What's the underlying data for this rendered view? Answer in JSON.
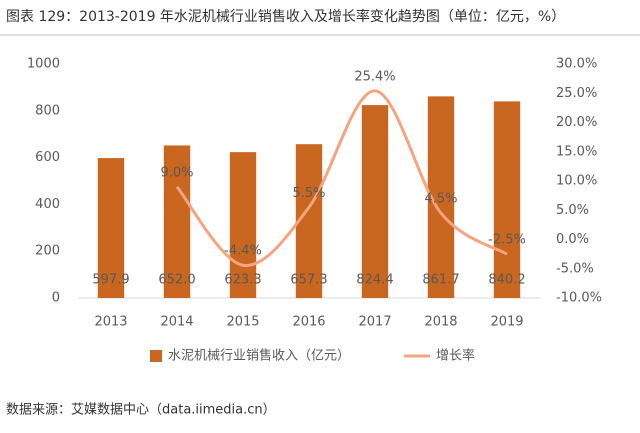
{
  "chart_data": {
    "type": "combo",
    "title": "图表 129：2013-2019 年水泥机械行业销售收入及增长率变化趋势图（单位：亿元，%）",
    "source": "数据来源：艾媒数据中心（data.iimedia.cn）",
    "categories": [
      "2013",
      "2014",
      "2015",
      "2016",
      "2017",
      "2018",
      "2019"
    ],
    "series": [
      {
        "name": "水泥机械行业销售收入（亿元）",
        "type": "bar",
        "color": "#c9661f",
        "values": [
          597.9,
          652.0,
          623.3,
          657.3,
          824.4,
          861.7,
          840.2
        ],
        "value_labels": [
          "597.9",
          "652.0",
          "623.3",
          "657.3",
          "824.4",
          "861.7",
          "840.2"
        ]
      },
      {
        "name": "增长率",
        "type": "line",
        "axis": "y2",
        "color": "#f4a57f",
        "values": [
          null,
          9.0,
          -4.4,
          5.5,
          25.4,
          4.5,
          -2.5
        ],
        "value_labels": [
          null,
          "9.0%",
          "-4.4%",
          "5.5%",
          "25.4%",
          "4.5%",
          "-2.5%"
        ]
      }
    ],
    "ylim": [
      0,
      1000
    ],
    "yticks": [
      0,
      200,
      400,
      600,
      800,
      1000
    ],
    "y2lim": [
      -10,
      30
    ],
    "y2ticks": [
      {
        "value": -10,
        "label": "-10.0%"
      },
      {
        "value": -5,
        "label": "-5.0%"
      },
      {
        "value": 0,
        "label": "0.0%"
      },
      {
        "value": 5,
        "label": "5.0%"
      },
      {
        "value": 10,
        "label": "10.0%"
      },
      {
        "value": 15,
        "label": "15.0%"
      },
      {
        "value": 20,
        "label": "20.0%"
      },
      {
        "value": 25,
        "label": "25.0%"
      },
      {
        "value": 30,
        "label": "30.0%"
      }
    ],
    "legend": "bottom"
  }
}
